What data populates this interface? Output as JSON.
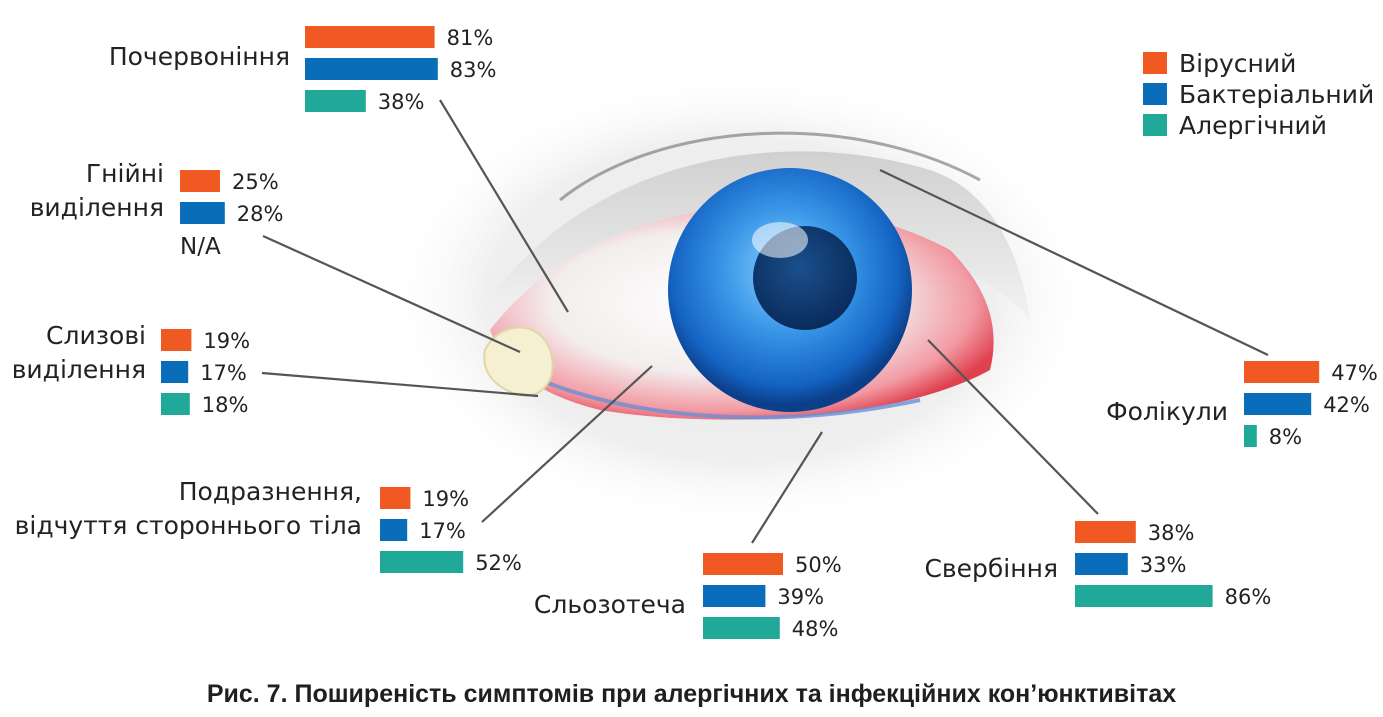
{
  "caption": "Рис. 7. Поширеність симптомів при алергічних та інфекційних кон’юнктивітах",
  "colors": {
    "viral": "#f05a22",
    "bacterial": "#0a6dba",
    "allergic": "#20a898",
    "leader": "#555555",
    "text": "#222222"
  },
  "illustration": "eye-with-conjunctivitis",
  "chart_data": {
    "type": "bar",
    "orientation": "horizontal",
    "unit": "%",
    "legend": {
      "position": "top-right",
      "entries": [
        "Вірусний",
        "Бактеріальний",
        "Алергічний"
      ]
    },
    "series": [
      {
        "name": "Вірусний",
        "color": "#f05a22"
      },
      {
        "name": "Бактеріальний",
        "color": "#0a6dba"
      },
      {
        "name": "Алергічний",
        "color": "#20a898"
      }
    ],
    "groups": [
      {
        "id": "redness",
        "label_lines": [
          "Почервоніння"
        ],
        "values": [
          {
            "series": "Вірусний",
            "value": 81,
            "label": "81%"
          },
          {
            "series": "Бактеріальний",
            "value": 83,
            "label": "83%"
          },
          {
            "series": "Алергічний",
            "value": 38,
            "label": "38%"
          }
        ]
      },
      {
        "id": "purulent",
        "label_lines": [
          "Гнійні",
          "виділення"
        ],
        "values": [
          {
            "series": "Вірусний",
            "value": 25,
            "label": "25%"
          },
          {
            "series": "Бактеріальний",
            "value": 28,
            "label": "28%"
          },
          {
            "series": "Алергічний",
            "value": null,
            "label": "N/A"
          }
        ]
      },
      {
        "id": "mucous",
        "label_lines": [
          "Слизові",
          "виділення"
        ],
        "values": [
          {
            "series": "Вірусний",
            "value": 19,
            "label": "19%"
          },
          {
            "series": "Бактеріальний",
            "value": 17,
            "label": "17%"
          },
          {
            "series": "Алергічний",
            "value": 18,
            "label": "18%"
          }
        ]
      },
      {
        "id": "irritation",
        "label_lines": [
          "Подразнення,",
          "відчуття стороннього тіла"
        ],
        "values": [
          {
            "series": "Вірусний",
            "value": 19,
            "label": "19%"
          },
          {
            "series": "Бактеріальний",
            "value": 17,
            "label": "17%"
          },
          {
            "series": "Алергічний",
            "value": 52,
            "label": "52%"
          }
        ]
      },
      {
        "id": "tearing",
        "label_lines": [
          "Сльозотеча"
        ],
        "values": [
          {
            "series": "Вірусний",
            "value": 50,
            "label": "50%"
          },
          {
            "series": "Бактеріальний",
            "value": 39,
            "label": "39%"
          },
          {
            "series": "Алергічний",
            "value": 48,
            "label": "48%"
          }
        ]
      },
      {
        "id": "itching",
        "label_lines": [
          "Свербіння"
        ],
        "values": [
          {
            "series": "Вірусний",
            "value": 38,
            "label": "38%"
          },
          {
            "series": "Бактеріальний",
            "value": 33,
            "label": "33%"
          },
          {
            "series": "Алергічний",
            "value": 86,
            "label": "86%"
          }
        ]
      },
      {
        "id": "follicles",
        "label_lines": [
          "Фолікули"
        ],
        "values": [
          {
            "series": "Вірусний",
            "value": 47,
            "label": "47%"
          },
          {
            "series": "Бактеріальний",
            "value": 42,
            "label": "42%"
          },
          {
            "series": "Алергічний",
            "value": 8,
            "label": "8%"
          }
        ]
      }
    ]
  }
}
